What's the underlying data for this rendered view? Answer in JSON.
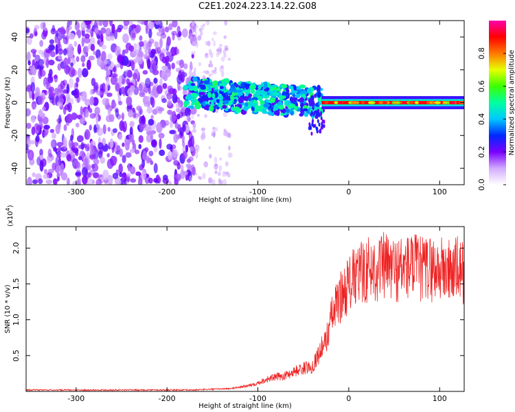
{
  "title": "C2E1.2024.223.14.22.G08",
  "chart_data": [
    {
      "type": "heatmap",
      "title": "C2E1.2024.223.14.22.G08",
      "xlabel": "Height of straight line (km)",
      "ylabel": "Frequency (Hz)",
      "xlim": [
        -355,
        127
      ],
      "ylim": [
        -50,
        50
      ],
      "xticks": [
        -300,
        -200,
        -100,
        0,
        100
      ],
      "yticks": [
        -40,
        -20,
        0,
        20,
        40
      ],
      "colorbar": {
        "label": "Normalized spectral amplitude",
        "range": [
          0,
          1
        ],
        "ticks": [
          "0.0",
          "0.2",
          "0.4",
          "0.6",
          "0.8"
        ],
        "tick_values": [
          0.0,
          0.2,
          0.4,
          0.6,
          0.8
        ]
      },
      "regions": [
        {
          "x_range": [
            -355,
            -175
          ],
          "freq_range": [
            -50,
            50
          ],
          "amplitude": "low-noise",
          "color": "violet"
        },
        {
          "x_range": [
            -175,
            -140
          ],
          "freq_range": [
            -50,
            50
          ],
          "amplitude": "sparse-low",
          "color": "light-violet"
        },
        {
          "x_range": [
            -180,
            -30
          ],
          "freq_range": [
            -15,
            15
          ],
          "amplitude": 0.35,
          "color": "blue-cyan-green"
        },
        {
          "x_range": [
            -30,
            127
          ],
          "freq_range": [
            -2,
            2
          ],
          "amplitude": 1.0,
          "color": "red"
        }
      ]
    },
    {
      "type": "line",
      "xlabel": "Height of straight line (km)",
      "ylabel": "SNR (10 * v/v)",
      "exponent_label": "(x10",
      "exponent_value": "4",
      "exponent_close": ")",
      "xlim": [
        -355,
        127
      ],
      "ylim": [
        0,
        2.3
      ],
      "xticks": [
        -300,
        -200,
        -100,
        0,
        100
      ],
      "yticks": [
        "0.5",
        "1.0",
        "1.5",
        "2.0"
      ],
      "ytick_values": [
        0.5,
        1.0,
        1.5,
        2.0
      ],
      "series": [
        {
          "name": "SNR",
          "color": "#ee2222",
          "x": [
            -355,
            -300,
            -250,
            -200,
            -170,
            -150,
            -130,
            -110,
            -100,
            -90,
            -80,
            -70,
            -60,
            -50,
            -40,
            -30,
            -25,
            -20,
            -15,
            -10,
            -5,
            0,
            10,
            20,
            30,
            40,
            50,
            60,
            70,
            80,
            90,
            100,
            110,
            120,
            127
          ],
          "y": [
            0.02,
            0.02,
            0.02,
            0.02,
            0.02,
            0.03,
            0.04,
            0.08,
            0.12,
            0.17,
            0.2,
            0.22,
            0.28,
            0.32,
            0.35,
            0.6,
            0.7,
            1.0,
            1.15,
            1.3,
            1.4,
            1.5,
            1.62,
            1.7,
            1.72,
            1.75,
            1.7,
            1.72,
            1.75,
            1.7,
            1.72,
            1.7,
            1.68,
            1.7,
            1.65
          ]
        }
      ]
    }
  ]
}
